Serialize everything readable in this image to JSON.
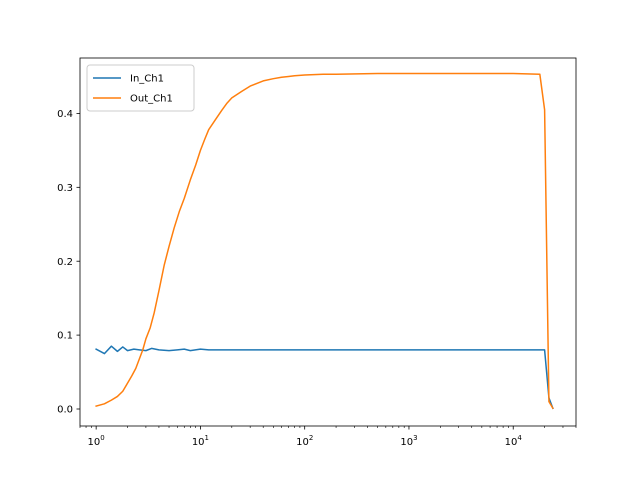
{
  "chart_data": {
    "type": "line",
    "xscale": "log",
    "x_ticks": [
      {
        "value": 1,
        "base": "10",
        "exp": "0"
      },
      {
        "value": 10,
        "base": "10",
        "exp": "1"
      },
      {
        "value": 100,
        "base": "10",
        "exp": "2"
      },
      {
        "value": 1000,
        "base": "10",
        "exp": "3"
      },
      {
        "value": 10000,
        "base": "10",
        "exp": "4"
      }
    ],
    "y_ticks": [
      {
        "value": 0.0,
        "label": "0.0"
      },
      {
        "value": 0.1,
        "label": "0.1"
      },
      {
        "value": 0.2,
        "label": "0.2"
      },
      {
        "value": 0.3,
        "label": "0.3"
      },
      {
        "value": 0.4,
        "label": "0.4"
      }
    ],
    "xlim": [
      0.7,
      40000
    ],
    "ylim": [
      -0.023,
      0.475
    ],
    "grid": false,
    "legend_position": "top-left",
    "series": [
      {
        "name": "In_Ch1",
        "color": "#1f77b4",
        "points": [
          [
            1.0,
            0.081
          ],
          [
            1.2,
            0.075
          ],
          [
            1.4,
            0.085
          ],
          [
            1.6,
            0.078
          ],
          [
            1.8,
            0.084
          ],
          [
            2.0,
            0.079
          ],
          [
            2.3,
            0.081
          ],
          [
            2.6,
            0.08
          ],
          [
            3.0,
            0.079
          ],
          [
            3.4,
            0.082
          ],
          [
            4.0,
            0.08
          ],
          [
            5.0,
            0.079
          ],
          [
            6.0,
            0.08
          ],
          [
            7.0,
            0.081
          ],
          [
            8.0,
            0.079
          ],
          [
            10,
            0.081
          ],
          [
            12,
            0.08
          ],
          [
            15,
            0.08
          ],
          [
            20,
            0.08
          ],
          [
            30,
            0.08
          ],
          [
            50,
            0.08
          ],
          [
            100,
            0.08
          ],
          [
            300,
            0.08
          ],
          [
            1000,
            0.08
          ],
          [
            3000,
            0.08
          ],
          [
            10000,
            0.08
          ],
          [
            20000,
            0.08
          ],
          [
            22000,
            0.015
          ],
          [
            24000,
            0.001
          ]
        ]
      },
      {
        "name": "Out_Ch1",
        "color": "#ff7f0e",
        "points": [
          [
            1.0,
            0.004
          ],
          [
            1.2,
            0.007
          ],
          [
            1.4,
            0.012
          ],
          [
            1.6,
            0.017
          ],
          [
            1.8,
            0.024
          ],
          [
            2.0,
            0.035
          ],
          [
            2.2,
            0.045
          ],
          [
            2.4,
            0.055
          ],
          [
            2.6,
            0.068
          ],
          [
            2.8,
            0.08
          ],
          [
            3.0,
            0.095
          ],
          [
            3.3,
            0.11
          ],
          [
            3.6,
            0.13
          ],
          [
            4.0,
            0.16
          ],
          [
            4.5,
            0.195
          ],
          [
            5.0,
            0.22
          ],
          [
            5.6,
            0.245
          ],
          [
            6.3,
            0.268
          ],
          [
            7.0,
            0.285
          ],
          [
            8.0,
            0.31
          ],
          [
            9.0,
            0.33
          ],
          [
            10.0,
            0.35
          ],
          [
            11,
            0.365
          ],
          [
            12,
            0.378
          ],
          [
            14,
            0.392
          ],
          [
            16,
            0.404
          ],
          [
            18,
            0.414
          ],
          [
            20,
            0.421
          ],
          [
            25,
            0.43
          ],
          [
            30,
            0.437
          ],
          [
            40,
            0.444
          ],
          [
            50,
            0.447
          ],
          [
            60,
            0.449
          ],
          [
            70,
            0.45
          ],
          [
            80,
            0.451
          ],
          [
            100,
            0.452
          ],
          [
            150,
            0.453
          ],
          [
            200,
            0.453
          ],
          [
            500,
            0.454
          ],
          [
            1000,
            0.454
          ],
          [
            3000,
            0.454
          ],
          [
            10000,
            0.454
          ],
          [
            18000,
            0.453
          ],
          [
            20000,
            0.405
          ],
          [
            22000,
            0.01
          ],
          [
            24000,
            0.001
          ]
        ]
      }
    ]
  }
}
